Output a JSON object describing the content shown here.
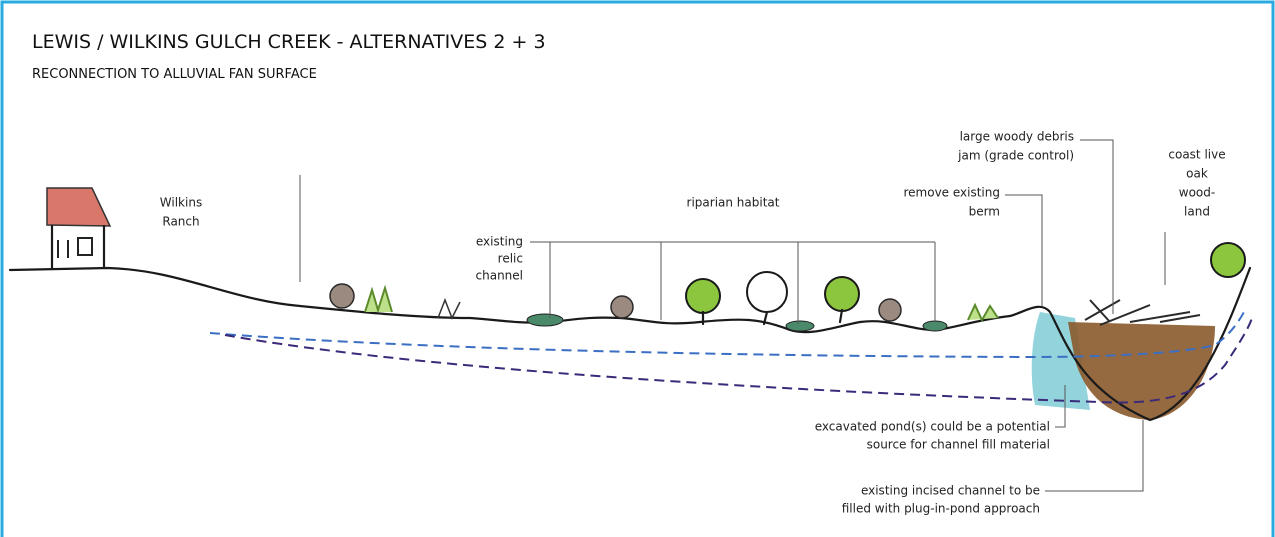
{
  "header": {
    "title": "LEWIS / WILKINS GULCH CREEK - ALTERNATIVES 2 + 3",
    "subtitle": "RECONNECTION TO ALLUVIAL FAN SURFACE"
  },
  "labels": [
    {
      "lines": [
        "Wilkins",
        "Ranch"
      ]
    },
    {
      "lines": [
        "riparian habitat"
      ]
    },
    {
      "lines": [
        "existing",
        "relic",
        "channel"
      ]
    },
    {
      "lines": [
        "remove existing",
        "berm"
      ]
    },
    {
      "lines": [
        "large woody debris",
        "jam (grade control)"
      ]
    },
    {
      "lines": [
        "coast live",
        "oak",
        "wood-",
        "land"
      ]
    },
    {
      "lines": [
        "excavated pond(s) could be a potential",
        "source for channel fill material"
      ]
    },
    {
      "lines": [
        "existing incised channel to be",
        "filled with plug-in-pond approach"
      ]
    }
  ]
}
